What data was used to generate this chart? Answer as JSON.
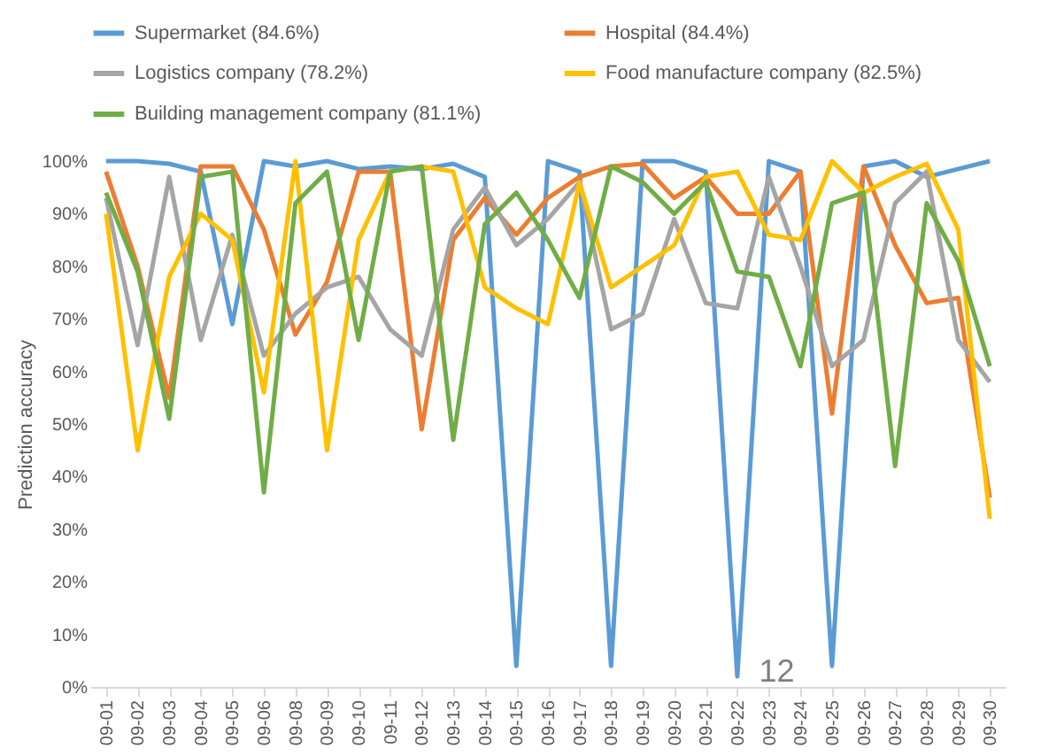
{
  "chart_data": {
    "type": "line",
    "ylabel": "Prediction accuracy",
    "legend": "top",
    "annotations": [
      "12"
    ],
    "categories": [
      "09-01",
      "09-02",
      "09-03",
      "09-04",
      "09-05",
      "09-06",
      "09-08",
      "09-09",
      "09-10",
      "09-11",
      "09-12",
      "09-13",
      "09-14",
      "09-15",
      "09-16",
      "09-17",
      "09-18",
      "09-19",
      "09-20",
      "09-21",
      "09-22",
      "09-23",
      "09-24",
      "09-25",
      "09-26",
      "09-27",
      "09-28",
      "09-29",
      "09-30"
    ],
    "ylim": [
      0,
      100
    ],
    "yticks": [
      {
        "value": 0,
        "label": "0%"
      },
      {
        "value": 10,
        "label": "10%"
      },
      {
        "value": 20,
        "label": "20%"
      },
      {
        "value": 30,
        "label": "30%"
      },
      {
        "value": 40,
        "label": "40%"
      },
      {
        "value": 50,
        "label": "50%"
      },
      {
        "value": 60,
        "label": "60%"
      },
      {
        "value": 70,
        "label": "70%"
      },
      {
        "value": 80,
        "label": "80%"
      },
      {
        "value": 90,
        "label": "90%"
      },
      {
        "value": 100,
        "label": "100%"
      }
    ],
    "series": [
      {
        "name": "Supermarket (84.6%)",
        "color": "#5b9bd5",
        "values": [
          100,
          100,
          99.5,
          98,
          69,
          100,
          99,
          100,
          98.5,
          99,
          98.5,
          99.5,
          97,
          4,
          100,
          98,
          4,
          100,
          100,
          98,
          2,
          100,
          98,
          4,
          99,
          100,
          97,
          98.5,
          100
        ]
      },
      {
        "name": "Hospital (84.4%)",
        "color": "#ed7d31",
        "values": [
          98,
          80,
          55,
          99,
          99,
          87,
          67,
          77,
          98,
          98,
          49,
          85,
          93,
          86,
          93,
          97,
          99,
          99.5,
          93,
          97,
          90,
          90,
          98,
          52,
          99,
          84,
          73,
          74,
          36
        ]
      },
      {
        "name": "Logistics company (78.2%)",
        "color": "#a5a5a5",
        "values": [
          93,
          65,
          97,
          66,
          86,
          63,
          71,
          76,
          78,
          68,
          63,
          87,
          95,
          84,
          89,
          96,
          68,
          71,
          89,
          73,
          72,
          97,
          80,
          61,
          66,
          92,
          98,
          66,
          58
        ]
      },
      {
        "name": "Food manufacture company (82.5%)",
        "color": "#ffc000",
        "values": [
          90,
          45,
          78,
          90,
          85,
          56,
          100,
          45,
          85,
          98,
          99,
          98,
          76,
          72,
          69,
          96,
          76,
          80,
          84,
          97,
          98,
          86,
          85,
          100,
          94,
          97,
          99.5,
          87,
          32
        ]
      },
      {
        "name": "Building management company (81.1%)",
        "color": "#70ad47",
        "values": [
          94,
          79,
          51,
          97,
          98,
          37,
          92,
          98,
          66,
          98,
          99,
          47,
          88,
          94,
          85,
          74,
          99,
          96,
          90,
          96,
          79,
          78,
          61,
          92,
          94,
          42,
          92,
          81,
          61
        ]
      }
    ]
  }
}
